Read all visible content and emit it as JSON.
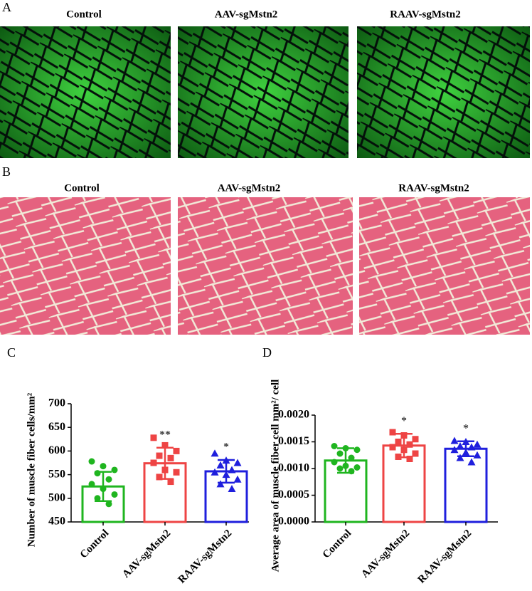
{
  "panels": {
    "a": {
      "label": "A",
      "titles": [
        "Control",
        "AAV-sgMstn2",
        "RAAV-sgMstn2"
      ]
    },
    "b": {
      "label": "B",
      "titles": [
        "Control",
        "AAV-sgMstn2",
        "RAAV-sgMstn2"
      ]
    },
    "c": {
      "label": "C"
    },
    "d": {
      "label": "D"
    }
  },
  "chart_data": [
    {
      "type": "bar",
      "y_label": "Number of muscle fiber cells/mm²",
      "categories": [
        "Control",
        "AAV-sgMstn2",
        "RAAV-sgMstn2"
      ],
      "values": [
        525,
        574,
        557
      ],
      "errors": [
        31,
        33,
        24
      ],
      "colors": [
        "#1fb51f",
        "#ee4444",
        "#1f1fdd"
      ],
      "markers": [
        "circle",
        "square",
        "triangle"
      ],
      "points": [
        [
          578,
          568,
          560,
          553,
          540,
          530,
          520,
          508,
          500,
          488
        ],
        [
          628,
          612,
          600,
          590,
          585,
          575,
          560,
          555,
          545,
          535
        ],
        [
          595,
          580,
          575,
          570,
          560,
          555,
          550,
          540,
          530,
          520
        ]
      ],
      "annotations": [
        null,
        "**",
        "*"
      ],
      "ylim": [
        450,
        700
      ],
      "yticks": [
        450,
        500,
        550,
        600,
        650,
        700
      ]
    },
    {
      "type": "bar",
      "y_label": "Average area of  muscle fiber cell  mm²/ cell",
      "categories": [
        "Control",
        "AAV-sgMstn2",
        "RAAV-sgMstn2"
      ],
      "values": [
        0.00115,
        0.00143,
        0.00137
      ],
      "errors": [
        0.00023,
        0.00022,
        0.00014
      ],
      "colors": [
        "#1fb51f",
        "#ee4444",
        "#1f1fdd"
      ],
      "markers": [
        "circle",
        "square",
        "triangle"
      ],
      "points": [
        [
          0.00142,
          0.00138,
          0.00135,
          0.00128,
          0.0012,
          0.00112,
          0.00105,
          0.00102,
          0.001,
          0.00095
        ],
        [
          0.00168,
          0.00162,
          0.00155,
          0.0015,
          0.00145,
          0.0014,
          0.00135,
          0.00128,
          0.00122,
          0.00118
        ],
        [
          0.00152,
          0.0015,
          0.00145,
          0.00142,
          0.0014,
          0.00135,
          0.0013,
          0.00125,
          0.0012,
          0.00112
        ]
      ],
      "annotations": [
        null,
        "*",
        "*"
      ],
      "ylim": [
        0,
        0.002
      ],
      "yticks": [
        {
          "value": 0,
          "label": "0.0000"
        },
        {
          "value": 0.0005,
          "label": "0.0005"
        },
        {
          "value": 0.001,
          "label": "0.0010"
        },
        {
          "value": 0.0015,
          "label": "0.0015"
        },
        {
          "value": 0.002,
          "label": "0.0020"
        }
      ]
    }
  ]
}
